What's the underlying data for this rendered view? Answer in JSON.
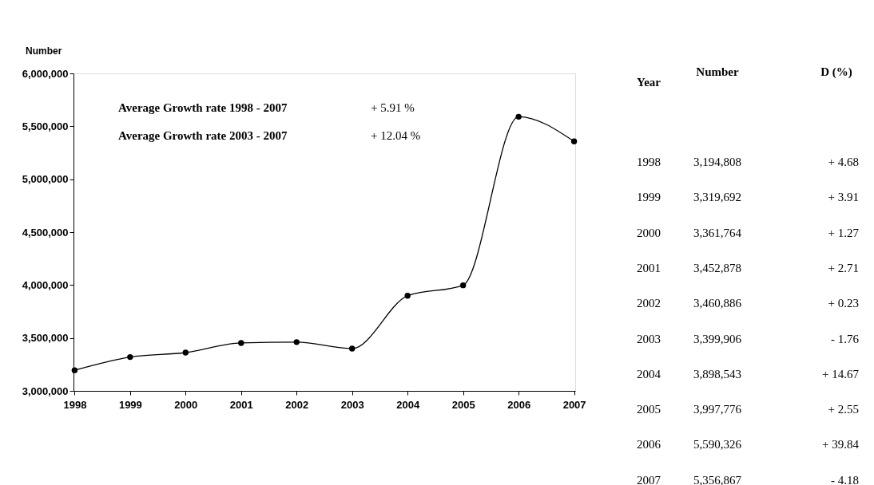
{
  "chart_data": {
    "type": "line",
    "ylabel": "Number",
    "categories": [
      "1998",
      "1999",
      "2000",
      "2001",
      "2002",
      "2003",
      "2004",
      "2005",
      "2006",
      "2007"
    ],
    "series": [
      {
        "color": "#000000",
        "values": [
          3194808,
          3319692,
          3361764,
          3452878,
          3460886,
          3399906,
          3898543,
          3997776,
          5590326,
          5356867
        ],
        "name": null
      }
    ],
    "ylim": [
      3000000,
      6000000
    ],
    "yticks": [
      {
        "value": 3000000,
        "label": "3,000,000"
      },
      {
        "value": 3500000,
        "label": "3,500,000"
      },
      {
        "value": 4000000,
        "label": "4,000,000"
      },
      {
        "value": 4500000,
        "label": "4,500,000"
      },
      {
        "value": 5000000,
        "label": "5,000,000"
      },
      {
        "value": 5500000,
        "label": "5,500,000"
      },
      {
        "value": 6000000,
        "label": "6,000,000"
      }
    ],
    "grid": false,
    "marker": "circle",
    "line_style": "solid",
    "annotations": [
      "Average Growth rate 1998 - 2007",
      "+ 5.91 %",
      "Average Growth rate 2003 - 2007",
      "+ 12.04 %",
      "Year",
      "Number",
      "D (%)",
      "+ 4.68",
      "+ 3.91",
      "+ 1.27",
      "+ 2.71",
      "+ 0.23",
      "- 1.76",
      "+ 14.67",
      "+ 2.55",
      "+ 39.84",
      "- 4.18",
      "3,194,808",
      "3,319,692",
      "3,361,764",
      "3,452,878",
      "3,460,886",
      "3,399,906",
      "3,898,543",
      "3,997,776",
      "5,590,326",
      "5,356,867"
    ]
  }
}
